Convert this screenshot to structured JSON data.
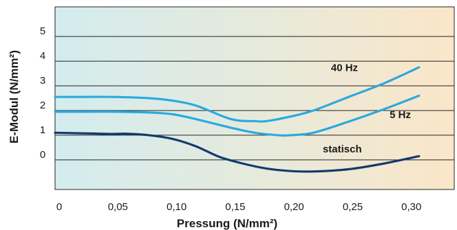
{
  "chart_data": {
    "type": "line",
    "title": "",
    "xlabel": "Pressung (N/mm²)",
    "ylabel": "E-Modul (N/mm²)",
    "xlim": [
      0,
      0.34
    ],
    "ylim": [
      -1.2,
      6.2
    ],
    "x_ticks": [
      0,
      0.05,
      0.1,
      0.15,
      0.2,
      0.25,
      0.3
    ],
    "x_tick_labels": [
      "0",
      "0,05",
      "0,10",
      "0,15",
      "0,20",
      "0,25",
      "0,30"
    ],
    "y_ticks": [
      0,
      1,
      2,
      3,
      4,
      5
    ],
    "y_tick_labels": [
      "0",
      "1",
      "2",
      "3",
      "4",
      "5"
    ],
    "grid": "horizontal",
    "legend": "none",
    "background_gradient": [
      "#d3ecef",
      "#e6eadc",
      "#fbe6c8"
    ],
    "series": [
      {
        "name": "40 Hz",
        "color": "#2aa9e0",
        "x": [
          0,
          0.02,
          0.05,
          0.08,
          0.1,
          0.12,
          0.15,
          0.17,
          0.18,
          0.2,
          0.22,
          0.25,
          0.28,
          0.31
        ],
        "y": [
          2.55,
          2.55,
          2.55,
          2.5,
          2.4,
          2.2,
          1.65,
          1.57,
          1.57,
          1.75,
          2.0,
          2.55,
          3.1,
          3.75
        ]
      },
      {
        "name": "5 Hz",
        "color": "#2aa9e0",
        "x": [
          0,
          0.02,
          0.05,
          0.08,
          0.1,
          0.12,
          0.15,
          0.17,
          0.19,
          0.2,
          0.22,
          0.25,
          0.28,
          0.31
        ],
        "y": [
          1.95,
          1.95,
          1.95,
          1.92,
          1.85,
          1.65,
          1.3,
          1.1,
          1.0,
          1.0,
          1.1,
          1.55,
          2.05,
          2.6
        ]
      },
      {
        "name": "statisch",
        "color": "#143a6e",
        "x": [
          0,
          0.03,
          0.05,
          0.06,
          0.08,
          0.1,
          0.12,
          0.14,
          0.16,
          0.18,
          0.2,
          0.22,
          0.25,
          0.28,
          0.31
        ],
        "y": [
          1.1,
          1.07,
          1.05,
          1.06,
          1.0,
          0.85,
          0.55,
          0.12,
          -0.15,
          -0.35,
          -0.45,
          -0.47,
          -0.38,
          -0.15,
          0.15
        ]
      }
    ],
    "annotations": [
      {
        "text": "40 Hz",
        "x": 0.235,
        "y": 3.6
      },
      {
        "text": "5 Hz",
        "x": 0.285,
        "y": 1.7
      },
      {
        "text": "statisch",
        "x": 0.228,
        "y": 0.3
      }
    ]
  }
}
